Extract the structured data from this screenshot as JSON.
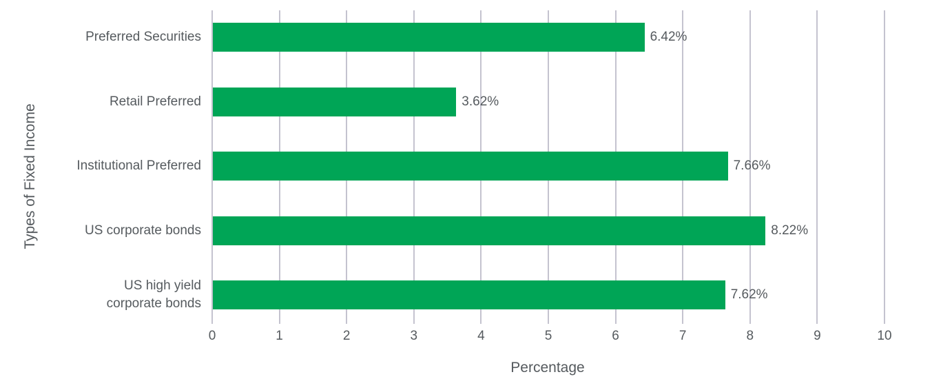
{
  "chart_data": {
    "type": "bar",
    "orientation": "horizontal",
    "title": "",
    "xlabel": "Percentage",
    "ylabel": "Types of Fixed Income",
    "categories": [
      "Preferred Securities",
      "Retail Preferred",
      "Institutional Preferred",
      "US corporate bonds",
      "US high yield corporate bonds"
    ],
    "category_lines": [
      [
        "Preferred Securities"
      ],
      [
        "Retail Preferred"
      ],
      [
        "Institutional Preferred"
      ],
      [
        "US corporate bonds"
      ],
      [
        "US high yield",
        "corporate bonds"
      ]
    ],
    "values": [
      6.42,
      3.62,
      7.66,
      8.22,
      7.62
    ],
    "value_labels": [
      "6.42%",
      "3.62%",
      "7.66%",
      "8.22%",
      "7.62%"
    ],
    "xlim": [
      0,
      10
    ],
    "x_ticks": [
      "0",
      "1",
      "2",
      "3",
      "4",
      "5",
      "6",
      "7",
      "8",
      "9",
      "10"
    ],
    "grid": "vertical",
    "legend": "none",
    "bar_color": "#00a556",
    "grid_color": "#c4c3cf",
    "text_color": "#555a5e"
  }
}
